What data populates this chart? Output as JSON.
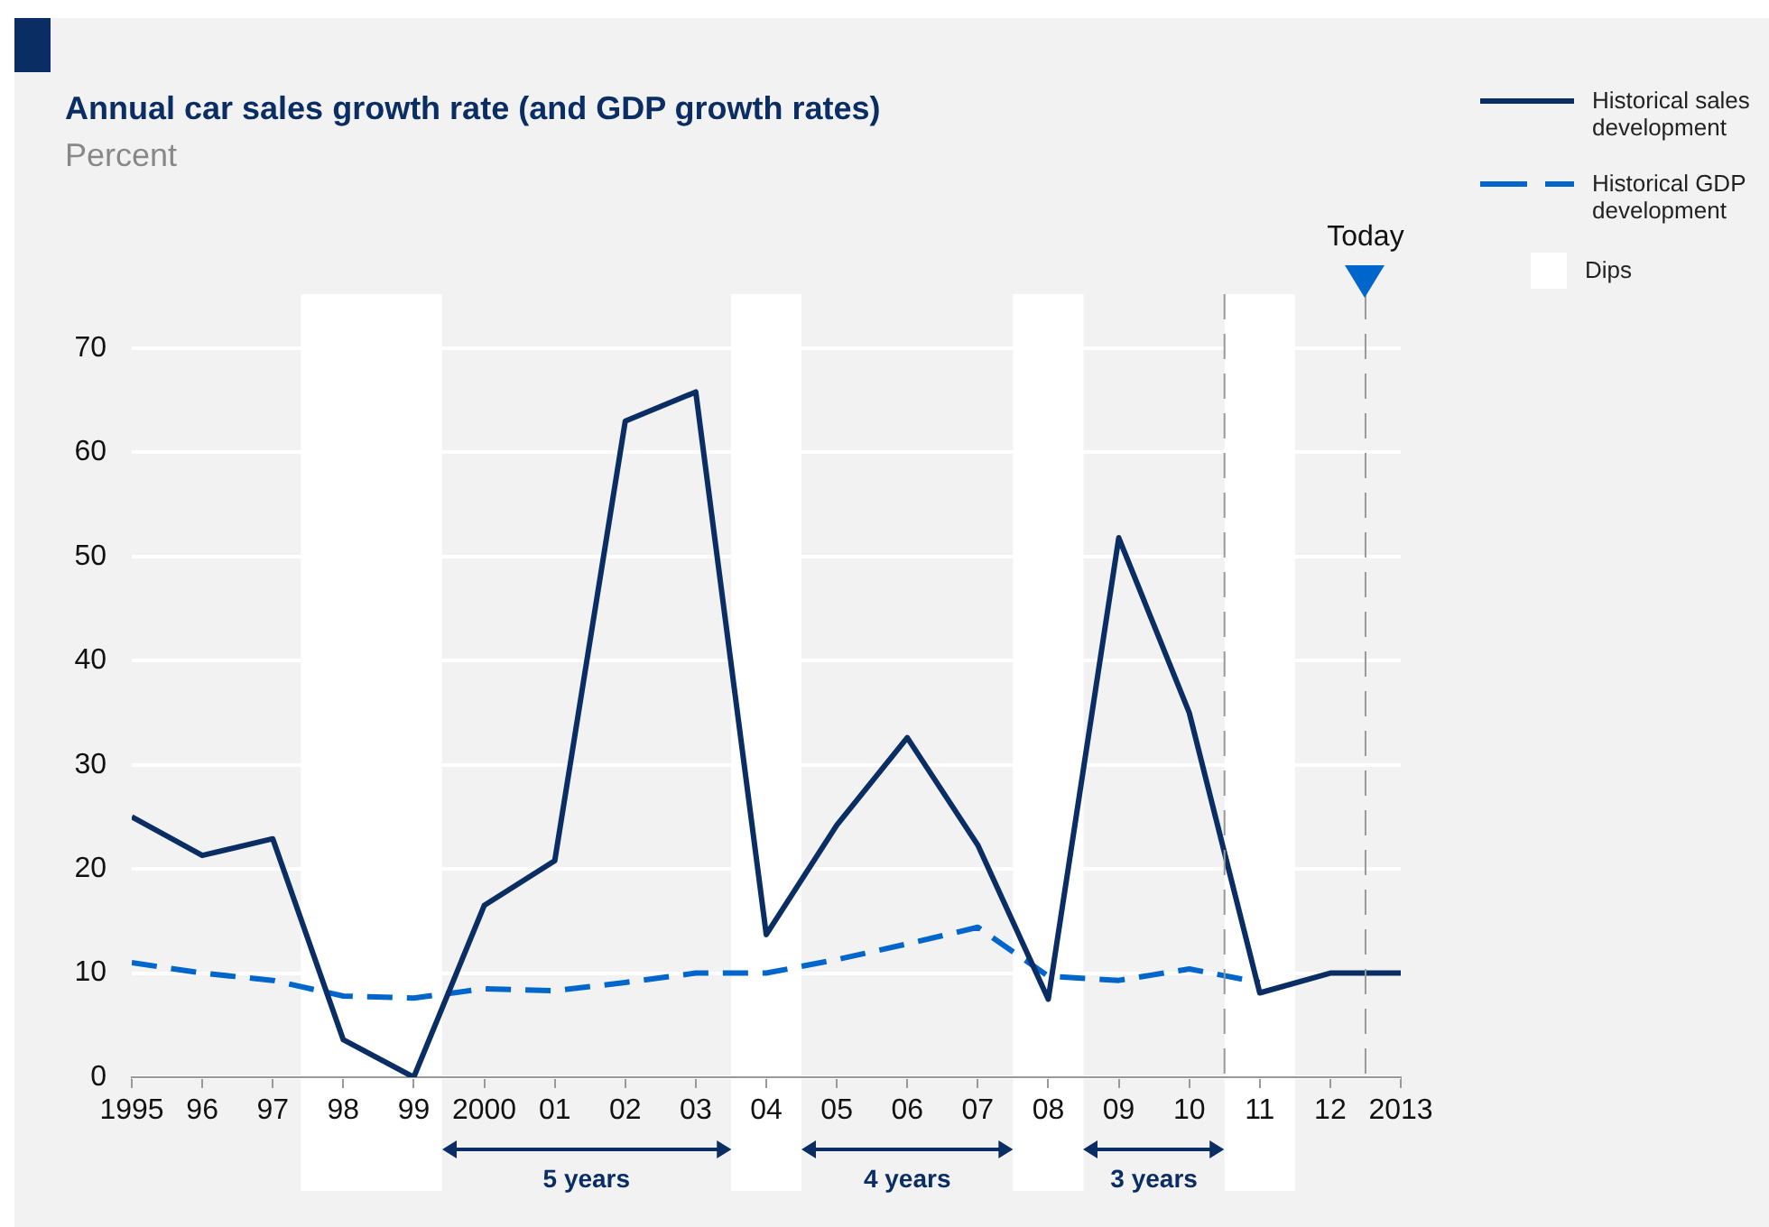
{
  "chart_data": {
    "type": "line",
    "title": "Annual car sales growth rate (and GDP growth rates)",
    "subtitle": "Percent",
    "x": [
      1995,
      1996,
      1997,
      1998,
      1999,
      2000,
      2001,
      2002,
      2003,
      2004,
      2005,
      2006,
      2007,
      2008,
      2009,
      2010,
      2011,
      2012,
      2013
    ],
    "series": [
      {
        "name": "Historical sales development",
        "color": "#0a2d63",
        "line_style": "solid",
        "values": [
          25,
          21.3,
          22.9,
          3.6,
          0,
          16.5,
          20.8,
          63,
          65.8,
          13.7,
          24.2,
          32.6,
          22.3,
          7.5,
          51.8,
          35,
          8.1,
          10,
          10
        ]
      },
      {
        "name": "Historical GDP development",
        "color": "#0066cc",
        "line_style": "dashed",
        "values": [
          11,
          10,
          9.3,
          7.8,
          7.6,
          8.5,
          8.3,
          9.1,
          10,
          10,
          11.3,
          12.8,
          14.4,
          9.7,
          9.3,
          10.4,
          9.1,
          null,
          null
        ]
      }
    ],
    "xlim": [
      1995,
      2013
    ],
    "xticks": [
      1995,
      {
        "value": 1996,
        "label": "96"
      },
      {
        "value": 1997,
        "label": "97"
      },
      {
        "value": 1998,
        "label": "98"
      },
      {
        "value": 1999,
        "label": "99"
      },
      2000,
      {
        "value": 2001,
        "label": "01"
      },
      {
        "value": 2002,
        "label": "02"
      },
      {
        "value": 2003,
        "label": "03"
      },
      {
        "value": 2004,
        "label": "04"
      },
      {
        "value": 2005,
        "label": "05"
      },
      {
        "value": 2006,
        "label": "06"
      },
      {
        "value": 2007,
        "label": "07"
      },
      {
        "value": 2008,
        "label": "08"
      },
      {
        "value": 2009,
        "label": "09"
      },
      {
        "value": 2010,
        "label": "10"
      },
      {
        "value": 2011,
        "label": "11"
      },
      {
        "value": 2012,
        "label": "12"
      },
      2013
    ],
    "ylim": [
      0,
      70
    ],
    "yticks": [
      0,
      10,
      20,
      30,
      40,
      50,
      60,
      70
    ],
    "bands": [
      {
        "axis": "x",
        "from": 1997.4,
        "to": 1999.4,
        "label": "Dips",
        "color": "#ffffff"
      },
      {
        "axis": "x",
        "from": 2003.5,
        "to": 2004.5,
        "color": "#ffffff"
      },
      {
        "axis": "x",
        "from": 2007.5,
        "to": 2008.5,
        "color": "#ffffff"
      },
      {
        "axis": "x",
        "from": 2010.5,
        "to": 2011.5,
        "color": "#ffffff"
      }
    ],
    "ref_lines": [
      {
        "axis": "x",
        "value": 2010.5,
        "color": "#999999",
        "line_style": "dashed"
      },
      {
        "axis": "x",
        "value": 2012.5,
        "label": "Today",
        "color": "#999999",
        "line_style": "dashed"
      }
    ],
    "annotations": [
      "5 years",
      "4 years",
      "3 years"
    ],
    "grid": "y",
    "legend": "top right",
    "marker": "none"
  }
}
